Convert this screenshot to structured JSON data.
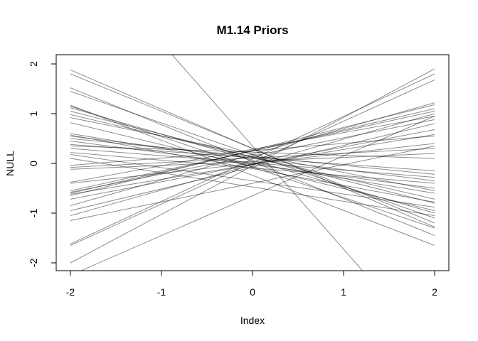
{
  "chart_data": {
    "type": "line",
    "title": "M1.14 Priors",
    "xlabel": "Index",
    "ylabel": "NULL",
    "xlim": [
      -2,
      2
    ],
    "ylim": [
      -2,
      2
    ],
    "x_ticks": [
      "-2",
      "-1",
      "0",
      "1",
      "2"
    ],
    "y_ticks": [
      "-2",
      "-1",
      "0",
      "1",
      "2"
    ],
    "line_color": "#000000",
    "line_opacity": 0.45,
    "grid": false,
    "series": [
      {
        "x": [
          -2,
          2
        ],
        "y": [
          1.88,
          -1.28
        ]
      },
      {
        "x": [
          -2,
          2
        ],
        "y": [
          1.8,
          -1.2
        ]
      },
      {
        "x": [
          -2,
          2
        ],
        "y": [
          1.52,
          -1.45
        ]
      },
      {
        "x": [
          -2,
          2
        ],
        "y": [
          1.45,
          -1.1
        ]
      },
      {
        "x": [
          -2,
          2
        ],
        "y": [
          1.17,
          -1.65
        ]
      },
      {
        "x": [
          -2,
          2
        ],
        "y": [
          1.15,
          -1.3
        ]
      },
      {
        "x": [
          -2,
          2
        ],
        "y": [
          1.12,
          -1.0
        ]
      },
      {
        "x": [
          -2,
          2
        ],
        "y": [
          1.05,
          -0.8
        ]
      },
      {
        "x": [
          -2,
          2
        ],
        "y": [
          0.98,
          -0.72
        ]
      },
      {
        "x": [
          -2,
          2
        ],
        "y": [
          0.92,
          -0.55
        ]
      },
      {
        "x": [
          -2,
          2
        ],
        "y": [
          0.82,
          -0.95
        ]
      },
      {
        "x": [
          -2,
          2
        ],
        "y": [
          0.6,
          -0.6
        ]
      },
      {
        "x": [
          -2,
          2
        ],
        "y": [
          0.57,
          -0.78
        ]
      },
      {
        "x": [
          -2,
          2
        ],
        "y": [
          0.55,
          -0.35
        ]
      },
      {
        "x": [
          -2,
          2
        ],
        "y": [
          0.5,
          -0.22
        ]
      },
      {
        "x": [
          -2,
          2
        ],
        "y": [
          0.45,
          -0.5
        ]
      },
      {
        "x": [
          -2,
          2
        ],
        "y": [
          0.38,
          -0.15
        ]
      },
      {
        "x": [
          -2,
          2
        ],
        "y": [
          0.35,
          0.1
        ]
      },
      {
        "x": [
          -2,
          2
        ],
        "y": [
          0.3,
          -0.28
        ]
      },
      {
        "x": [
          -2,
          2
        ],
        "y": [
          0.22,
          -0.4
        ]
      },
      {
        "x": [
          -2,
          2
        ],
        "y": [
          0.18,
          -0.88
        ]
      },
      {
        "x": [
          -2,
          2
        ],
        "y": [
          0.1,
          -1.05
        ]
      },
      {
        "x": [
          -2,
          2
        ],
        "y": [
          -0.04,
          0.55
        ]
      },
      {
        "x": [
          -2,
          2
        ],
        "y": [
          -0.08,
          0.3
        ]
      },
      {
        "x": [
          -2,
          2
        ],
        "y": [
          -0.12,
          0.2
        ]
      },
      {
        "x": [
          -2,
          2
        ],
        "y": [
          -0.38,
          0.95
        ]
      },
      {
        "x": [
          -2,
          2
        ],
        "y": [
          -0.4,
          0.4
        ]
      },
      {
        "x": [
          -2,
          2
        ],
        "y": [
          -0.55,
          1.05
        ]
      },
      {
        "x": [
          -2,
          2
        ],
        "y": [
          -0.58,
          0.88
        ]
      },
      {
        "x": [
          -2,
          2
        ],
        "y": [
          -0.6,
          1.1
        ]
      },
      {
        "x": [
          -2,
          2
        ],
        "y": [
          -0.62,
          0.58
        ]
      },
      {
        "x": [
          -2,
          2
        ],
        "y": [
          -0.65,
          1.18
        ]
      },
      {
        "x": [
          -2,
          2
        ],
        "y": [
          -0.72,
          0.68
        ]
      },
      {
        "x": [
          -2,
          2
        ],
        "y": [
          -0.85,
          1.22
        ]
      },
      {
        "x": [
          -2,
          2
        ],
        "y": [
          -0.95,
          0.8
        ]
      },
      {
        "x": [
          -2,
          2
        ],
        "y": [
          -1.05,
          1.0
        ]
      },
      {
        "x": [
          -2,
          2
        ],
        "y": [
          -1.15,
          0.35
        ]
      },
      {
        "x": [
          -2,
          2
        ],
        "y": [
          -1.65,
          1.68
        ]
      },
      {
        "x": [
          -2,
          2
        ],
        "y": [
          -1.62,
          1.8
        ]
      },
      {
        "x": [
          -2,
          2
        ],
        "y": [
          -2.0,
          1.9
        ]
      },
      {
        "x": [
          -2,
          2
        ],
        "y": [
          -2.25,
          0.95
        ]
      },
      {
        "x": [
          -2,
          2
        ],
        "y": [
          4.5,
          -3.8
        ]
      }
    ]
  }
}
